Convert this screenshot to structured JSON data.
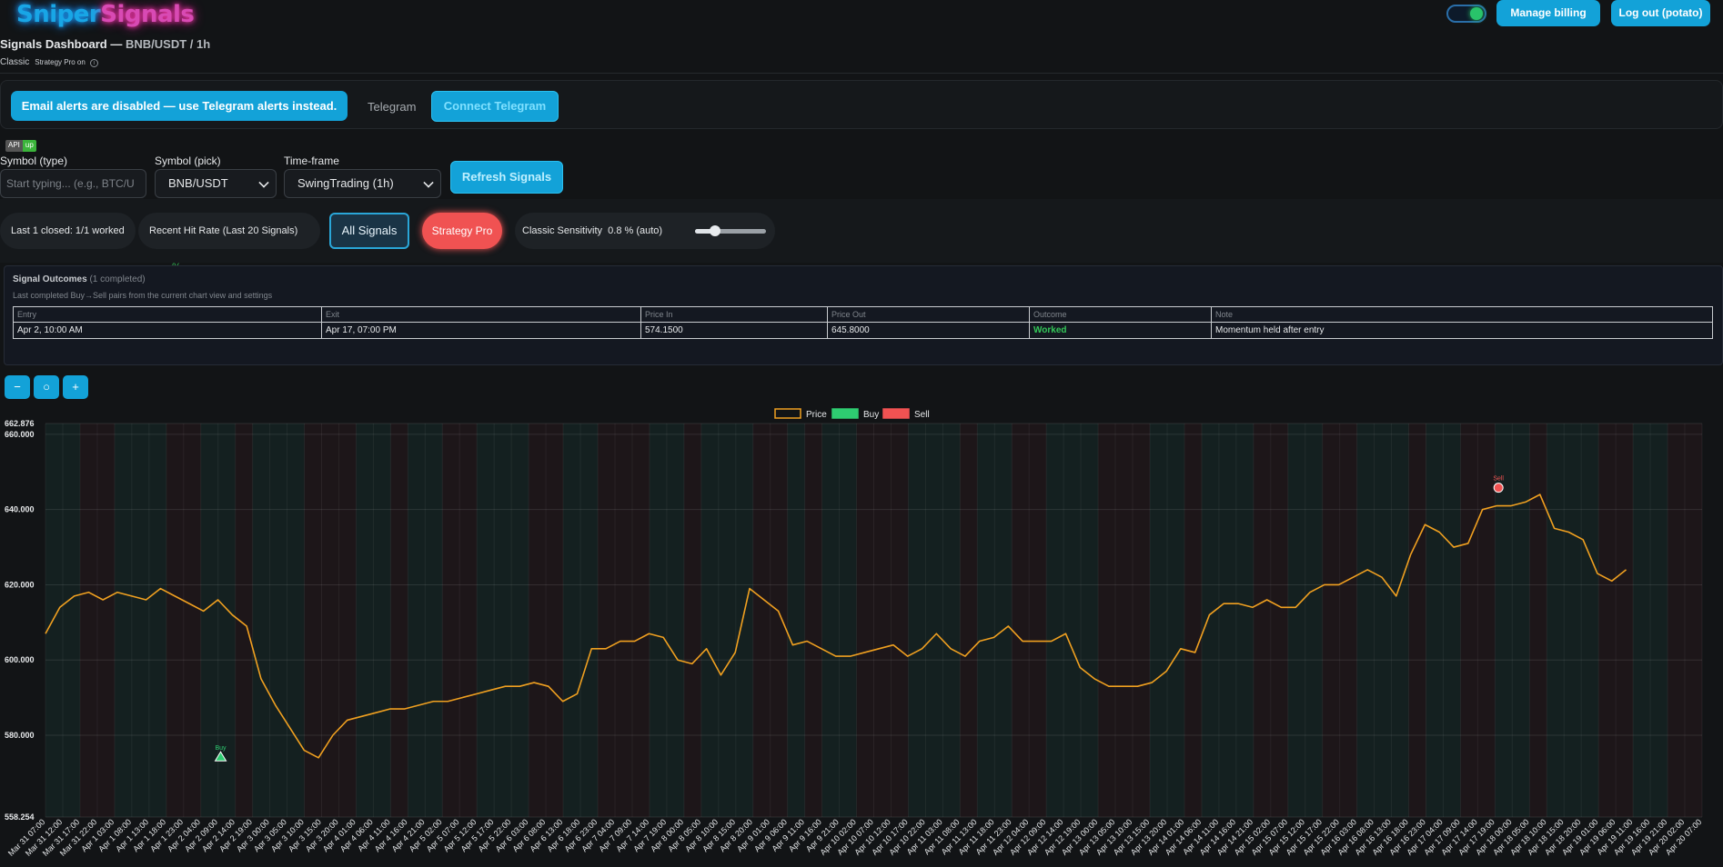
{
  "brand": {
    "logo_part1": "Sniper",
    "logo_part2": "Signals"
  },
  "header": {
    "toggle_on": true,
    "manage_billing": "Manage billing",
    "logout": "Log out (potato)"
  },
  "dashboard": {
    "title": "Signals Dashboard —",
    "symbol_tf": "BNB/USDT / 1h",
    "mode": "Classic",
    "strategy_note": "Strategy Pro on",
    "info_icon": "i"
  },
  "alerts": {
    "email_notice": "Email alerts are disabled — use Telegram alerts instead.",
    "telegram_label": "Telegram",
    "connect_telegram": "Connect Telegram"
  },
  "api_status": {
    "key": "API",
    "value": "up"
  },
  "controls": {
    "symbol_type_label": "Symbol (type)",
    "symbol_type_placeholder": "Start typing... (e.g., BTC/U",
    "symbol_pick_label": "Symbol (pick)",
    "symbol_pick_value": "BNB/USDT",
    "timeframe_label": "Time-frame",
    "timeframe_value": "SwingTrading (1h)",
    "refresh": "Refresh Signals"
  },
  "stats": {
    "last_closed": "Last 1 closed: 1/1 worked",
    "hit_rate_label": "Recent Hit Rate (Last 20 Signals) —",
    "hit_rate_value": "—%",
    "all_signals": "All Signals",
    "strategy_pro": "Strategy Pro",
    "sensitivity_label": "Classic Sensitivity",
    "sensitivity_value": "0.8 % (auto)",
    "sensitivity_fraction": 0.28
  },
  "outcomes": {
    "title": "Signal Outcomes",
    "count": "(1 completed)",
    "subtitle": "Last completed Buy→Sell pairs from the current chart view and settings",
    "columns": [
      "Entry",
      "Exit",
      "Price In",
      "Price Out",
      "Outcome",
      "Note"
    ],
    "rows": [
      [
        "Apr 2, 10:00 AM",
        "Apr 17, 07:00 PM",
        "574.1500",
        "645.8000",
        "Worked",
        "Momentum held after entry"
      ]
    ]
  },
  "zoom": {
    "out": "−",
    "reset": "○",
    "in": "+"
  },
  "colors": {
    "accent": "#13a2d8",
    "price": "#f0a020",
    "buy": "#2ecc71",
    "sell": "#f05252"
  },
  "chart_data": {
    "type": "line",
    "legend": [
      "Price",
      "Buy",
      "Sell"
    ],
    "legend_position": "top-center",
    "ylim": [
      558.254,
      662.876
    ],
    "yticks": [
      "662.876",
      "660.000",
      "640.000",
      "620.000",
      "600.000",
      "580.000",
      "558.254"
    ],
    "xticks": [
      "Mar 31 07:00",
      "Mar 31 12:00",
      "Mar 31 17:00",
      "Mar 31 22:00",
      "Apr 1 03:00",
      "Apr 1 08:00",
      "Apr 1 13:00",
      "Apr 1 18:00",
      "Apr 1 23:00",
      "Apr 2 04:00",
      "Apr 2 09:00",
      "Apr 2 14:00",
      "Apr 2 19:00",
      "Apr 3 00:00",
      "Apr 3 05:00",
      "Apr 3 10:00",
      "Apr 3 15:00",
      "Apr 3 20:00",
      "Apr 4 01:00",
      "Apr 4 06:00",
      "Apr 4 11:00",
      "Apr 4 16:00",
      "Apr 4 21:00",
      "Apr 5 02:00",
      "Apr 5 07:00",
      "Apr 5 12:00",
      "Apr 5 17:00",
      "Apr 5 22:00",
      "Apr 6 03:00",
      "Apr 6 08:00",
      "Apr 6 13:00",
      "Apr 6 18:00",
      "Apr 6 23:00",
      "Apr 7 04:00",
      "Apr 7 09:00",
      "Apr 7 14:00",
      "Apr 7 19:00",
      "Apr 8 00:00",
      "Apr 8 05:00",
      "Apr 8 10:00",
      "Apr 8 15:00",
      "Apr 8 20:00",
      "Apr 9 01:00",
      "Apr 9 06:00",
      "Apr 9 11:00",
      "Apr 9 16:00",
      "Apr 9 21:00",
      "Apr 10 02:00",
      "Apr 10 07:00",
      "Apr 10 12:00",
      "Apr 10 17:00",
      "Apr 10 22:00",
      "Apr 11 03:00",
      "Apr 11 08:00",
      "Apr 11 13:00",
      "Apr 11 18:00",
      "Apr 11 23:00",
      "Apr 12 04:00",
      "Apr 12 09:00",
      "Apr 12 14:00",
      "Apr 12 19:00",
      "Apr 13 00:00",
      "Apr 13 05:00",
      "Apr 13 10:00",
      "Apr 13 15:00",
      "Apr 13 20:00",
      "Apr 14 01:00",
      "Apr 14 06:00",
      "Apr 14 11:00",
      "Apr 14 16:00",
      "Apr 14 21:00",
      "Apr 15 02:00",
      "Apr 15 07:00",
      "Apr 15 12:00",
      "Apr 15 17:00",
      "Apr 15 22:00",
      "Apr 16 03:00",
      "Apr 16 08:00",
      "Apr 16 13:00",
      "Apr 16 18:00",
      "Apr 16 23:00",
      "Apr 17 04:00",
      "Apr 17 09:00",
      "Apr 17 14:00",
      "Apr 17 19:00",
      "Apr 18 00:00",
      "Apr 18 05:00",
      "Apr 18 10:00",
      "Apr 18 15:00",
      "Apr 18 20:00",
      "Apr 19 01:00",
      "Apr 19 06:00",
      "Apr 19 11:00",
      "Apr 19 16:00",
      "Apr 19 21:00",
      "Apr 20 02:00",
      "Apr 20 07:00"
    ],
    "price": [
      607,
      614,
      617,
      618,
      616,
      618,
      617,
      616,
      619,
      617,
      615,
      613,
      616,
      612,
      609,
      595,
      588,
      582,
      576,
      574,
      580,
      584,
      585,
      586,
      587,
      587,
      588,
      589,
      589,
      590,
      591,
      592,
      593,
      593,
      594,
      593,
      589,
      591,
      603,
      603,
      605,
      605,
      607,
      606,
      600,
      599,
      603,
      596,
      602,
      619,
      616,
      613,
      604,
      605,
      603,
      601,
      601,
      602,
      603,
      604,
      601,
      603,
      607,
      603,
      601,
      605,
      606,
      609,
      605,
      605,
      605,
      607,
      598,
      595,
      593,
      593,
      593,
      594,
      597,
      603,
      602,
      612,
      615,
      615,
      614,
      616,
      614,
      614,
      618,
      620,
      620,
      622,
      624,
      622,
      617,
      628,
      636,
      634,
      630,
      631,
      640,
      641,
      641,
      642,
      644,
      635,
      634,
      632,
      623,
      621,
      624
    ],
    "buy_signals": [
      {
        "x": "Apr 2 10:00",
        "price": 574.15,
        "label": "Buy"
      }
    ],
    "sell_signals": [
      {
        "x": "Apr 17 19:00",
        "price": 645.8,
        "label": "Sell"
      }
    ]
  }
}
